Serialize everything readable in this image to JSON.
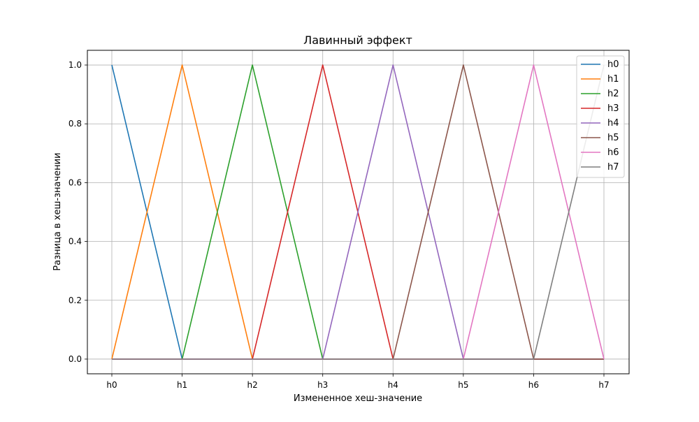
{
  "chart_data": {
    "type": "line",
    "title": "Лавинный эффект",
    "xlabel": "Измененное хеш-значение",
    "ylabel": "Разница в хеш-значении",
    "categories": [
      "h0",
      "h1",
      "h2",
      "h3",
      "h4",
      "h5",
      "h6",
      "h7"
    ],
    "ylim": [
      -0.05,
      1.05
    ],
    "yticks": [
      "0.0",
      "0.2",
      "0.4",
      "0.6",
      "0.8",
      "1.0"
    ],
    "grid": true,
    "legend_position": "top-right",
    "series": [
      {
        "name": "h0",
        "color": "#1f77b4",
        "values": [
          1,
          0,
          0,
          0,
          0,
          0,
          0,
          0
        ]
      },
      {
        "name": "h1",
        "color": "#ff7f0e",
        "values": [
          0,
          1,
          0,
          0,
          0,
          0,
          0,
          0
        ]
      },
      {
        "name": "h2",
        "color": "#2ca02c",
        "values": [
          0,
          0,
          1,
          0,
          0,
          0,
          0,
          0
        ]
      },
      {
        "name": "h3",
        "color": "#d62728",
        "values": [
          0,
          0,
          0,
          1,
          0,
          0,
          0,
          0
        ]
      },
      {
        "name": "h4",
        "color": "#9467bd",
        "values": [
          0,
          0,
          0,
          0,
          1,
          0,
          0,
          0
        ]
      },
      {
        "name": "h5",
        "color": "#8c564b",
        "values": [
          0,
          0,
          0,
          0,
          0,
          1,
          0,
          0
        ]
      },
      {
        "name": "h6",
        "color": "#e377c2",
        "values": [
          0,
          0,
          0,
          0,
          0,
          0,
          1,
          0
        ]
      },
      {
        "name": "h7",
        "color": "#7f7f7f",
        "values": [
          0,
          0,
          0,
          0,
          0,
          0,
          0,
          1
        ]
      }
    ]
  }
}
